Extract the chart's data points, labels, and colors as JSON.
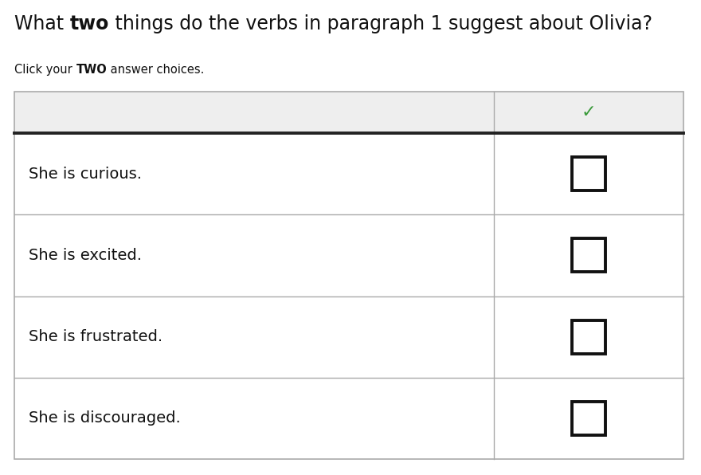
{
  "title_parts": [
    {
      "text": "What ",
      "bold": false
    },
    {
      "text": "two",
      "bold": true
    },
    {
      "text": " things do the verbs in paragraph 1 suggest about Olivia?",
      "bold": false
    }
  ],
  "subtitle_parts": [
    {
      "text": "Click your ",
      "bold": false
    },
    {
      "text": "TWO",
      "bold": true
    },
    {
      "text": " answer choices.",
      "bold": false
    }
  ],
  "choices": [
    "She is curious.",
    "She is excited.",
    "She is frustrated.",
    "She is discouraged."
  ],
  "header_bg": "#eeeeee",
  "row_bg": "#ffffff",
  "border_color": "#aaaaaa",
  "heavy_border_color": "#222222",
  "check_color": "#3a9a3a",
  "text_color": "#111111",
  "background_color": "#ffffff",
  "title_fontsize": 17,
  "subtitle_fontsize": 10.5,
  "choice_fontsize": 14
}
